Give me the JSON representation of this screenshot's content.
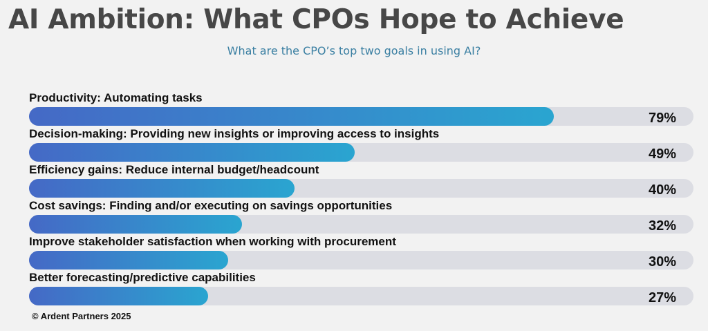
{
  "title": "AI Ambition: What CPOs Hope to Achieve",
  "subtitle": "What are the CPO’s top two goals in using AI?",
  "footer": "© Ardent Partners 2025",
  "chart_data": {
    "type": "bar",
    "orientation": "horizontal",
    "categories": [
      "Productivity: Automating tasks",
      "Decision-making: Providing new insights or improving access to insights",
      "Efficiency gains: Reduce internal budget/headcount",
      "Cost savings: Finding and/or executing on savings opportunities",
      "Improve stakeholder satisfaction when working with procurement",
      "Better forecasting/predictive capabilities"
    ],
    "values": [
      79,
      49,
      40,
      32,
      30,
      27
    ],
    "value_labels": [
      "79%",
      "49%",
      "40%",
      "32%",
      "30%",
      "27%"
    ],
    "xlim": [
      0,
      100
    ],
    "grid": false,
    "colors": {
      "track": "#dcdde3",
      "gradient_start": "#4569c6",
      "gradient_end": "#2aa5d0"
    }
  }
}
